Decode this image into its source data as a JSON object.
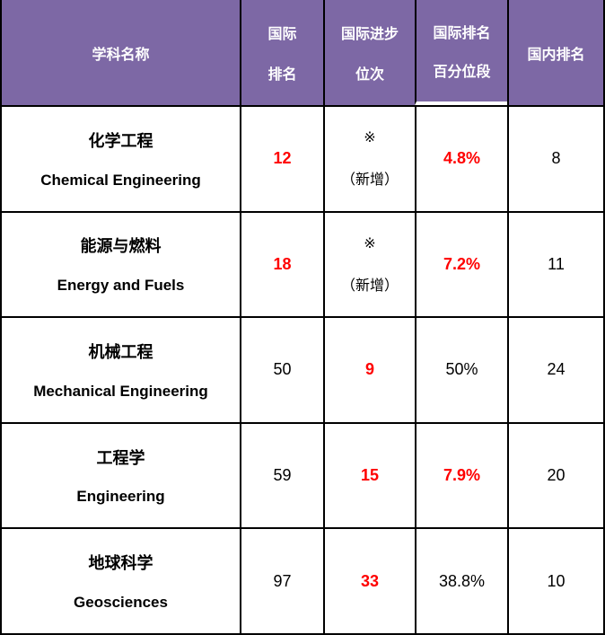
{
  "colors": {
    "header_bg": "#7D68A5",
    "header_text": "#FFFFFF",
    "highlight_red": "#FF0000",
    "body_text": "#000000",
    "border": "#000000",
    "cell_bg": "#FFFFFF"
  },
  "table": {
    "headers": {
      "subject": "学科名称",
      "intl_rank": [
        "国际",
        "排名"
      ],
      "progress": [
        "国际进步",
        "位次"
      ],
      "percentile": [
        "国际排名",
        "百分位段"
      ],
      "domestic": "国内排名"
    },
    "rows": [
      {
        "name_zh": "化学工程",
        "name_en": "Chemical Engineering",
        "intl_rank": {
          "value": "12",
          "highlight": true
        },
        "progress": {
          "lines": [
            "※",
            "（新增）"
          ],
          "highlight": false
        },
        "percentile": {
          "value": "4.8%",
          "highlight": true
        },
        "domestic": {
          "value": "8",
          "highlight": false
        }
      },
      {
        "name_zh": "能源与燃料",
        "name_en": "Energy and Fuels",
        "intl_rank": {
          "value": "18",
          "highlight": true
        },
        "progress": {
          "lines": [
            "※",
            "（新增）"
          ],
          "highlight": false
        },
        "percentile": {
          "value": "7.2%",
          "highlight": true
        },
        "domestic": {
          "value": "11",
          "highlight": false
        }
      },
      {
        "name_zh": "机械工程",
        "name_en": "Mechanical Engineering",
        "intl_rank": {
          "value": "50",
          "highlight": false
        },
        "progress": {
          "lines": [
            "9"
          ],
          "highlight": true
        },
        "percentile": {
          "value": "50%",
          "highlight": false
        },
        "domestic": {
          "value": "24",
          "highlight": false
        }
      },
      {
        "name_zh": "工程学",
        "name_en": "Engineering",
        "intl_rank": {
          "value": "59",
          "highlight": false
        },
        "progress": {
          "lines": [
            "15"
          ],
          "highlight": true
        },
        "percentile": {
          "value": "7.9%",
          "highlight": true
        },
        "domestic": {
          "value": "20",
          "highlight": false
        }
      },
      {
        "name_zh": "地球科学",
        "name_en": "Geosciences",
        "intl_rank": {
          "value": "97",
          "highlight": false
        },
        "progress": {
          "lines": [
            "33"
          ],
          "highlight": true
        },
        "percentile": {
          "value": "38.8%",
          "highlight": false
        },
        "domestic": {
          "value": "10",
          "highlight": false
        }
      }
    ]
  },
  "chart_data": {
    "type": "table",
    "columns": [
      "学科名称",
      "国际排名",
      "国际进步位次",
      "国际排名百分位段",
      "国内排名"
    ],
    "rows": [
      [
        "化学工程 Chemical Engineering",
        "12",
        "※（新增）",
        "4.8%",
        "8"
      ],
      [
        "能源与燃料 Energy and Fuels",
        "18",
        "※（新增）",
        "7.2%",
        "11"
      ],
      [
        "机械工程 Mechanical Engineering",
        "50",
        "9",
        "50%",
        "24"
      ],
      [
        "工程学 Engineering",
        "59",
        "15",
        "7.9%",
        "20"
      ],
      [
        "地球科学 Geosciences",
        "97",
        "33",
        "38.8%",
        "10"
      ]
    ]
  }
}
